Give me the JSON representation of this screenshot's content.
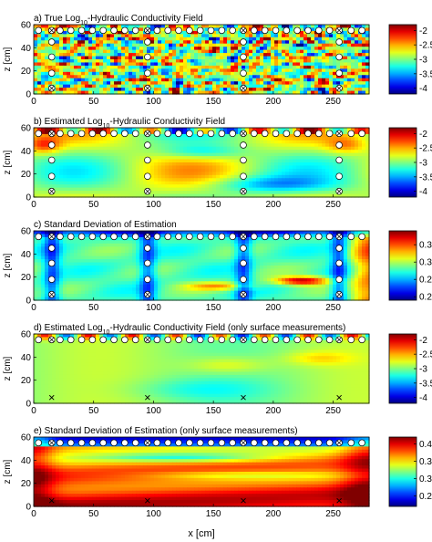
{
  "figure": {
    "xlabel": "x [cm]",
    "ylabel": "z [cm]"
  },
  "chart_data": [
    {
      "type": "heatmap",
      "title_prefix": "a) True Log",
      "title_sub": "10",
      "title_suffix": "-Hydraulic Conductivity Field",
      "ylabel": "z [cm]",
      "xlim": [
        0,
        280
      ],
      "ylim": [
        0,
        60
      ],
      "xticks": [
        0,
        50,
        100,
        150,
        200,
        250
      ],
      "yticks": [
        0,
        20,
        40,
        60
      ],
      "show_xtick_labels": true,
      "colorbar": {
        "ticks": [
          "-2",
          "-2.5",
          "-3",
          "-3.5",
          "-4"
        ],
        "range": [
          -4.2,
          -1.8
        ],
        "colormap": "jet"
      },
      "pattern": "random-field",
      "markers": "full"
    },
    {
      "type": "heatmap",
      "title_prefix": "b) Estimated Log",
      "title_sub": "10",
      "title_suffix": "-Hydraulic Conductivity Field",
      "ylabel": "z [cm]",
      "xlim": [
        0,
        280
      ],
      "ylim": [
        0,
        60
      ],
      "xticks": [
        0,
        50,
        100,
        150,
        200,
        250
      ],
      "yticks": [
        0,
        20,
        40,
        60
      ],
      "show_xtick_labels": true,
      "colorbar": {
        "ticks": [
          "-2",
          "-2.5",
          "-3",
          "-3.5",
          "-4"
        ],
        "range": [
          -4.2,
          -1.8
        ],
        "colormap": "jet"
      },
      "pattern": "smooth-estimate",
      "markers": "full"
    },
    {
      "type": "heatmap",
      "title_prefix": "c) Standard Deviation of Estimation",
      "title_sub": "",
      "title_suffix": "",
      "ylabel": "z [cm]",
      "xlim": [
        0,
        280
      ],
      "ylim": [
        0,
        60
      ],
      "xticks": [
        0,
        50,
        100,
        150,
        200,
        250
      ],
      "yticks": [
        0,
        20,
        40,
        60
      ],
      "show_xtick_labels": true,
      "colorbar": {
        "ticks": [
          "0.35",
          "0.3",
          "0.25",
          "0.2"
        ],
        "range": [
          0.19,
          0.39
        ],
        "colormap": "jet"
      },
      "pattern": "std-full",
      "markers": "full"
    },
    {
      "type": "heatmap",
      "title_prefix": "d) Estimated Log",
      "title_sub": "10",
      "title_suffix": "-Hydraulic Conductivity Field (only surface measurements)",
      "ylabel": "z [cm]",
      "xlim": [
        0,
        280
      ],
      "ylim": [
        0,
        60
      ],
      "xticks": [
        0,
        50,
        100,
        150,
        200,
        250
      ],
      "yticks": [
        0,
        20,
        40,
        60
      ],
      "show_xtick_labels": true,
      "colorbar": {
        "ticks": [
          "-2",
          "-2.5",
          "-3",
          "-3.5",
          "-4"
        ],
        "range": [
          -4.2,
          -1.8
        ],
        "colormap": "jet"
      },
      "pattern": "surface-estimate",
      "markers": "surface"
    },
    {
      "type": "heatmap",
      "title_prefix": "e) Standard Deviation of Estimation (only surface measurements)",
      "title_sub": "",
      "title_suffix": "",
      "ylabel": "z [cm]",
      "xlim": [
        0,
        280
      ],
      "ylim": [
        0,
        60
      ],
      "xticks": [
        0,
        50,
        100,
        150,
        200,
        250
      ],
      "yticks": [
        0,
        20,
        40,
        60
      ],
      "show_xtick_labels": true,
      "colorbar": {
        "ticks": [
          "0.4",
          "0.35",
          "0.3",
          "0.25"
        ],
        "range": [
          0.22,
          0.42
        ],
        "colormap": "jet"
      },
      "pattern": "std-surface",
      "markers": "surface"
    }
  ],
  "measurement_locations": {
    "surface_z": 55,
    "surface_x_step": 9,
    "surface_x_start": 4,
    "wells_x": [
      15,
      95,
      175,
      255
    ],
    "well_z": [
      5,
      18,
      32,
      45,
      55
    ],
    "deep_cross_z": 5
  }
}
